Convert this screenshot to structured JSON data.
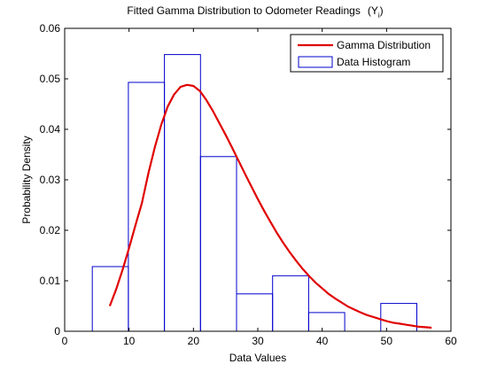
{
  "chart_data": {
    "type": "bar",
    "title": "Fitted Gamma Distribution to Odometer Readings",
    "title_symbol": "(Y",
    "title_subscript": "i",
    "title_close": ")",
    "xlabel": "Data Values",
    "ylabel": "Probability Density",
    "xlim": [
      0,
      60
    ],
    "ylim": [
      0,
      0.06
    ],
    "xticks": [
      0,
      10,
      20,
      30,
      40,
      50,
      60
    ],
    "yticks": [
      0,
      0.01,
      0.02,
      0.03,
      0.04,
      0.05,
      0.06
    ],
    "xtick_labels": [
      "0",
      "10",
      "20",
      "30",
      "40",
      "50",
      "60"
    ],
    "ytick_labels": [
      "0",
      "0.01",
      "0.02",
      "0.03",
      "0.04",
      "0.05",
      "0.06"
    ],
    "grid": false,
    "legend_position": "top-right",
    "series": [
      {
        "name": "Gamma Distribution",
        "kind": "line",
        "color": "#e00000",
        "x": [
          7,
          8,
          9,
          10,
          11,
          12,
          13,
          14,
          15,
          16,
          17,
          18,
          19,
          20,
          21,
          22,
          23,
          24,
          25,
          26,
          27,
          28,
          29,
          30,
          31,
          32,
          33,
          34,
          35,
          36,
          37,
          38,
          39,
          40,
          41,
          42,
          43,
          44,
          45,
          46,
          47,
          48,
          49,
          50,
          51,
          52,
          53,
          54,
          55,
          56,
          57
        ],
        "y": [
          0.005,
          0.0083,
          0.0122,
          0.0165,
          0.021,
          0.0254,
          0.0313,
          0.0364,
          0.0409,
          0.0445,
          0.0469,
          0.0484,
          0.0488,
          0.0486,
          0.0476,
          0.0458,
          0.0437,
          0.0413,
          0.0389,
          0.0364,
          0.0338,
          0.0312,
          0.0287,
          0.0262,
          0.0238,
          0.0216,
          0.0194,
          0.0174,
          0.0156,
          0.0139,
          0.0123,
          0.0109,
          0.0096,
          0.0085,
          0.0074,
          0.0065,
          0.0057,
          0.0049,
          0.0043,
          0.0037,
          0.0032,
          0.0028,
          0.0024,
          0.002,
          0.0017,
          0.0015,
          0.0013,
          0.0011,
          0.0009,
          0.0008,
          0.0007
        ]
      },
      {
        "name": "Data Histogram",
        "kind": "histogram",
        "color": "#0000cc",
        "bins": [
          {
            "x0": 4.3,
            "x1": 9.9,
            "y": 0.0128
          },
          {
            "x0": 9.9,
            "x1": 15.5,
            "y": 0.0493
          },
          {
            "x0": 15.5,
            "x1": 21.1,
            "y": 0.0548
          },
          {
            "x0": 21.1,
            "x1": 26.7,
            "y": 0.0346
          },
          {
            "x0": 26.7,
            "x1": 32.3,
            "y": 0.0074
          },
          {
            "x0": 32.3,
            "x1": 37.9,
            "y": 0.011
          },
          {
            "x0": 37.9,
            "x1": 43.5,
            "y": 0.0037
          },
          {
            "x0": 43.5,
            "x1": 49.1,
            "y": 0
          },
          {
            "x0": 49.1,
            "x1": 54.7,
            "y": 0.0055
          }
        ]
      }
    ]
  }
}
